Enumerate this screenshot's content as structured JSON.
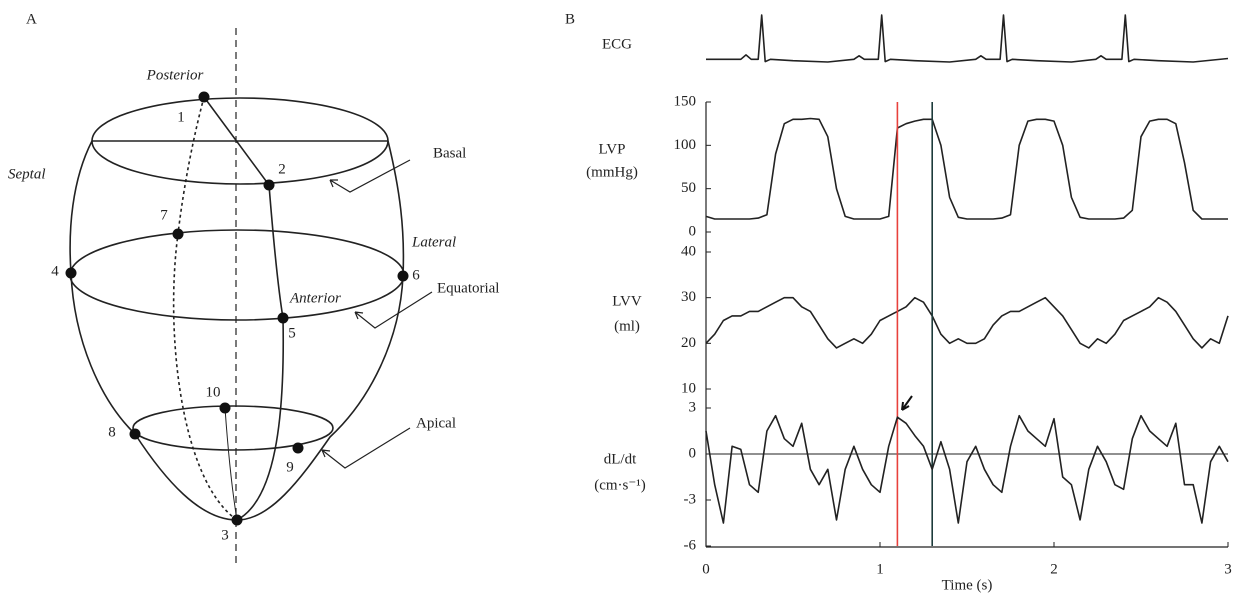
{
  "panel_a": {
    "label": "A",
    "regions": {
      "posterior": "Posterior",
      "septal": "Septal",
      "lateral": "Lateral",
      "anterior": "Anterior"
    },
    "levels": {
      "basal": "Basal",
      "equatorial": "Equatorial",
      "apical": "Apical"
    },
    "points": [
      "1",
      "2",
      "3",
      "4",
      "5",
      "6",
      "7",
      "8",
      "9",
      "10"
    ]
  },
  "panel_b": {
    "label": "B"
  },
  "chart_data": [
    {
      "type": "line",
      "ylabel": "ECG",
      "xlim": [
        0,
        3
      ],
      "x": [
        0,
        0.2,
        0.23,
        0.26,
        0.3,
        0.32,
        0.34,
        0.37,
        0.5,
        0.7,
        0.85,
        0.88,
        0.91,
        0.99,
        1.01,
        1.03,
        1.06,
        1.2,
        1.4,
        1.55,
        1.58,
        1.61,
        1.69,
        1.71,
        1.73,
        1.76,
        1.9,
        2.1,
        2.24,
        2.27,
        2.3,
        2.39,
        2.41,
        2.43,
        2.46,
        2.6,
        2.8,
        3.0
      ],
      "values": [
        0,
        0,
        0.1,
        0,
        0,
        1,
        -0.05,
        0,
        -0.03,
        -0.06,
        0,
        0.08,
        0,
        0,
        1,
        -0.05,
        0,
        -0.03,
        -0.06,
        0,
        0.08,
        0,
        0,
        1,
        -0.05,
        0,
        -0.03,
        -0.06,
        0,
        0.08,
        0,
        0,
        1,
        -0.05,
        0,
        -0.03,
        -0.06,
        0.02
      ],
      "color": "#222"
    },
    {
      "type": "line",
      "ylabel": "LVP",
      "yunit": "(mmHg)",
      "xlim": [
        0,
        3
      ],
      "ylim": [
        0,
        150
      ],
      "yticks": [
        0,
        50,
        100,
        150
      ],
      "x": [
        0,
        0.05,
        0.1,
        0.15,
        0.2,
        0.25,
        0.3,
        0.35,
        0.4,
        0.45,
        0.5,
        0.55,
        0.6,
        0.65,
        0.7,
        0.75,
        0.8,
        0.85,
        0.9,
        0.95,
        1.0,
        1.05,
        1.1,
        1.15,
        1.2,
        1.25,
        1.3,
        1.35,
        1.4,
        1.45,
        1.5,
        1.55,
        1.6,
        1.65,
        1.7,
        1.75,
        1.8,
        1.85,
        1.9,
        1.95,
        2.0,
        2.05,
        2.1,
        2.15,
        2.2,
        2.25,
        2.3,
        2.35,
        2.4,
        2.45,
        2.5,
        2.55,
        2.6,
        2.65,
        2.7,
        2.75,
        2.8,
        2.85,
        2.9,
        2.95,
        3.0
      ],
      "values": [
        18,
        15,
        15,
        15,
        15,
        15,
        16,
        20,
        90,
        125,
        130,
        130,
        131,
        130,
        110,
        50,
        18,
        15,
        15,
        15,
        15,
        18,
        120,
        125,
        128,
        130,
        130,
        100,
        40,
        17,
        15,
        15,
        15,
        15,
        16,
        20,
        100,
        128,
        130,
        130,
        128,
        100,
        40,
        17,
        15,
        15,
        15,
        15,
        16,
        25,
        110,
        128,
        130,
        130,
        125,
        80,
        25,
        15,
        15,
        15,
        15
      ],
      "color": "#222"
    },
    {
      "type": "line",
      "ylabel": "LVV",
      "yunit": "(ml)",
      "xlim": [
        0,
        3
      ],
      "ylim": [
        10,
        40
      ],
      "yticks": [
        10,
        20,
        30,
        40
      ],
      "x": [
        0,
        0.05,
        0.1,
        0.15,
        0.2,
        0.25,
        0.3,
        0.35,
        0.4,
        0.45,
        0.5,
        0.55,
        0.6,
        0.65,
        0.7,
        0.75,
        0.8,
        0.85,
        0.9,
        0.95,
        1.0,
        1.05,
        1.1,
        1.15,
        1.2,
        1.25,
        1.3,
        1.35,
        1.4,
        1.45,
        1.5,
        1.55,
        1.6,
        1.65,
        1.7,
        1.75,
        1.8,
        1.85,
        1.9,
        1.95,
        2.0,
        2.05,
        2.1,
        2.15,
        2.2,
        2.25,
        2.3,
        2.35,
        2.4,
        2.45,
        2.5,
        2.55,
        2.6,
        2.65,
        2.7,
        2.75,
        2.8,
        2.85,
        2.9,
        2.95,
        3.0
      ],
      "values": [
        20,
        22,
        25,
        26,
        26,
        27,
        27,
        28,
        29,
        30,
        30,
        28,
        27,
        24,
        21,
        19,
        20,
        21,
        20,
        22,
        25,
        26,
        27,
        28,
        30,
        29,
        26,
        22,
        20,
        21,
        20,
        20,
        21,
        24,
        26,
        27,
        27,
        28,
        29,
        30,
        28,
        26,
        23,
        20,
        19,
        21,
        20,
        22,
        25,
        26,
        27,
        28,
        30,
        29,
        27,
        24,
        21,
        19,
        21,
        20,
        26
      ],
      "color": "#222"
    },
    {
      "type": "line",
      "ylabel": "dL/dt",
      "yunit": "(cm·s⁻¹)",
      "xlabel": "Time (s)",
      "xlim": [
        0,
        3
      ],
      "xticks": [
        0,
        1,
        2,
        3
      ],
      "ylim": [
        -6,
        3
      ],
      "yticks": [
        -6,
        -3,
        0,
        3
      ],
      "zero_line": true,
      "vlines": [
        {
          "x": 1.1,
          "color": "#e8413c"
        },
        {
          "x": 1.3,
          "color": "#1d3b3b"
        }
      ],
      "x": [
        0,
        0.05,
        0.1,
        0.15,
        0.2,
        0.25,
        0.3,
        0.35,
        0.4,
        0.45,
        0.5,
        0.55,
        0.6,
        0.65,
        0.7,
        0.75,
        0.8,
        0.85,
        0.9,
        0.95,
        1.0,
        1.05,
        1.1,
        1.15,
        1.2,
        1.25,
        1.3,
        1.35,
        1.4,
        1.45,
        1.5,
        1.55,
        1.6,
        1.65,
        1.7,
        1.75,
        1.8,
        1.85,
        1.9,
        1.95,
        2.0,
        2.05,
        2.1,
        2.15,
        2.2,
        2.25,
        2.3,
        2.35,
        2.4,
        2.45,
        2.5,
        2.55,
        2.6,
        2.65,
        2.7,
        2.75,
        2.8,
        2.85,
        2.9,
        2.95,
        3.0
      ],
      "values": [
        1.5,
        -2,
        -4.5,
        0.5,
        0.3,
        -2,
        -2.5,
        1.5,
        2.5,
        1,
        0.5,
        2,
        -1,
        -2,
        -1,
        -4.3,
        -1,
        0.5,
        -1,
        -2,
        -2.5,
        0.5,
        2.4,
        2,
        1.2,
        0.5,
        -1,
        0.8,
        -1,
        -4.5,
        -0.5,
        0.5,
        -1,
        -2,
        -2.5,
        0.5,
        2.5,
        1.5,
        1,
        0.5,
        2.3,
        -1.5,
        -2,
        -4.3,
        -1,
        0.5,
        -0.5,
        -2,
        -2.3,
        1,
        2.5,
        1.5,
        1,
        0.5,
        2,
        -2,
        -2,
        -4.5,
        -0.5,
        0.5,
        -0.5
      ],
      "color": "#222"
    }
  ]
}
